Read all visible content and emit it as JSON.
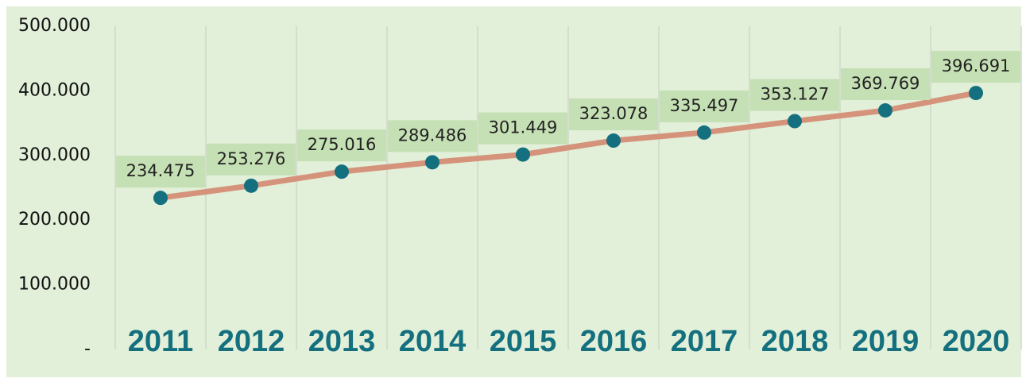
{
  "chart_data": {
    "type": "line",
    "categories": [
      "2011",
      "2012",
      "2013",
      "2014",
      "2015",
      "2016",
      "2017",
      "2018",
      "2019",
      "2020"
    ],
    "series": [
      {
        "color": "#d4937a",
        "marker_color": "#14707e",
        "values": [
          234475,
          253276,
          275016,
          289486,
          301449,
          323078,
          335497,
          353127,
          369769,
          396691
        ],
        "value_labels": [
          "234.475",
          "253.276",
          "275.016",
          "289.486",
          "301.449",
          "323.078",
          "335.497",
          "353.127",
          "369.769",
          "396.691"
        ]
      }
    ],
    "ylim": [
      0,
      500000
    ],
    "yticks": [
      {
        "value": 0,
        "label": "-"
      },
      {
        "value": 100000,
        "label": "100.000"
      },
      {
        "value": 200000,
        "label": "200.000"
      },
      {
        "value": 300000,
        "label": "300.000"
      },
      {
        "value": 400000,
        "label": "400.000"
      },
      {
        "value": 500000,
        "label": "500.000"
      }
    ],
    "grid": true
  }
}
